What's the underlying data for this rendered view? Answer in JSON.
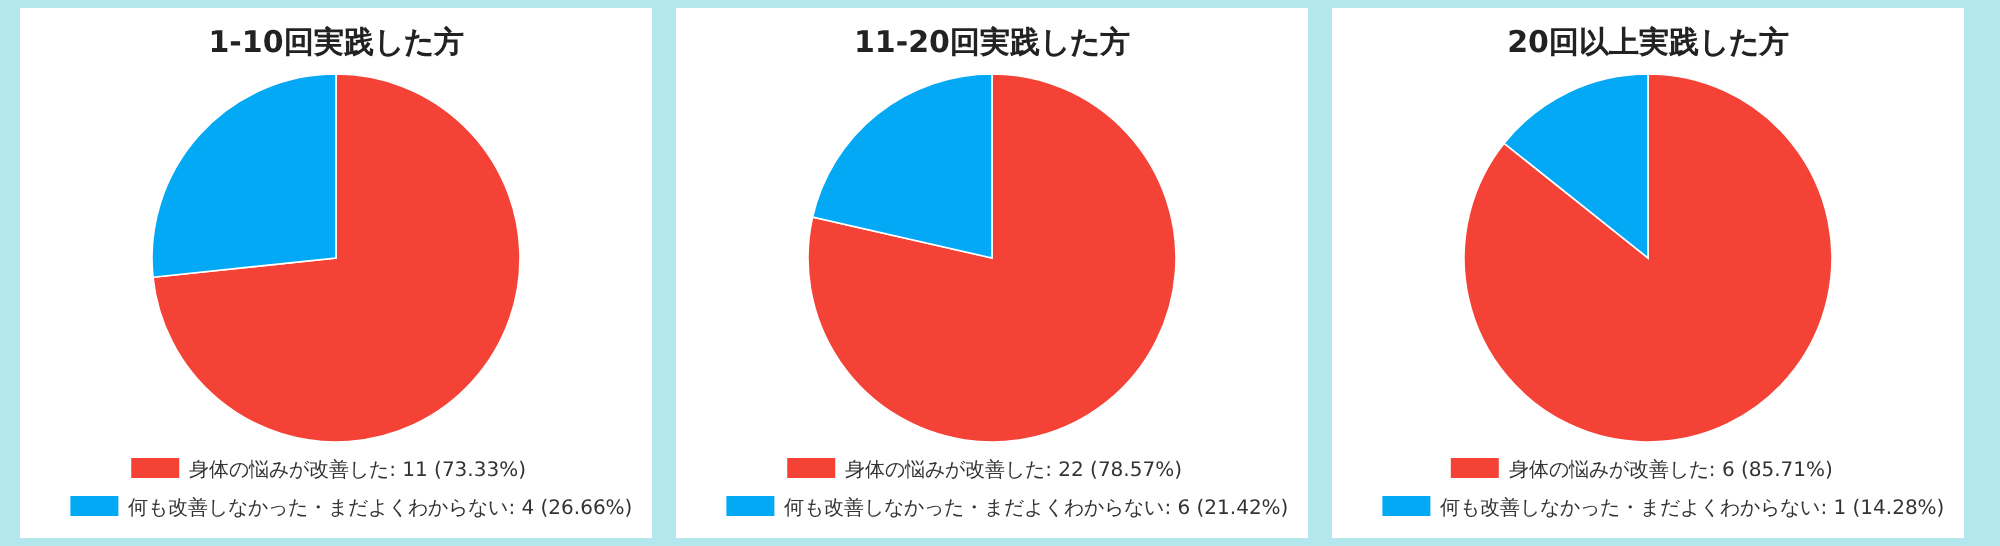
{
  "chart_data": [
    {
      "type": "pie",
      "title": "1-10回実践した方",
      "categories": [
        "身体の悩みが改善した",
        "何も改善しなかった・まだよくわからない"
      ],
      "values": [
        11,
        4
      ],
      "value_labels": [
        "11 (73.33%)",
        "4 (26.66%)"
      ],
      "colors": [
        "#f44336",
        "#03a9f4"
      ],
      "legend": "bottom"
    },
    {
      "type": "pie",
      "title": "11-20回実践した方",
      "categories": [
        "身体の悩みが改善した",
        "何も改善しなかった・まだよくわからない"
      ],
      "values": [
        22,
        6
      ],
      "value_labels": [
        "22 (78.57%)",
        "6 (21.42%)"
      ],
      "colors": [
        "#f44336",
        "#03a9f4"
      ],
      "legend": "bottom"
    },
    {
      "type": "pie",
      "title": "20回以上実践した方",
      "categories": [
        "身体の悩みが改善した",
        "何も改善しなかった・まだよくわからない"
      ],
      "values": [
        6,
        1
      ],
      "value_labels": [
        "6 (85.71%)",
        "1 (14.28%)"
      ],
      "colors": [
        "#f44336",
        "#03a9f4"
      ],
      "legend": "bottom"
    }
  ]
}
